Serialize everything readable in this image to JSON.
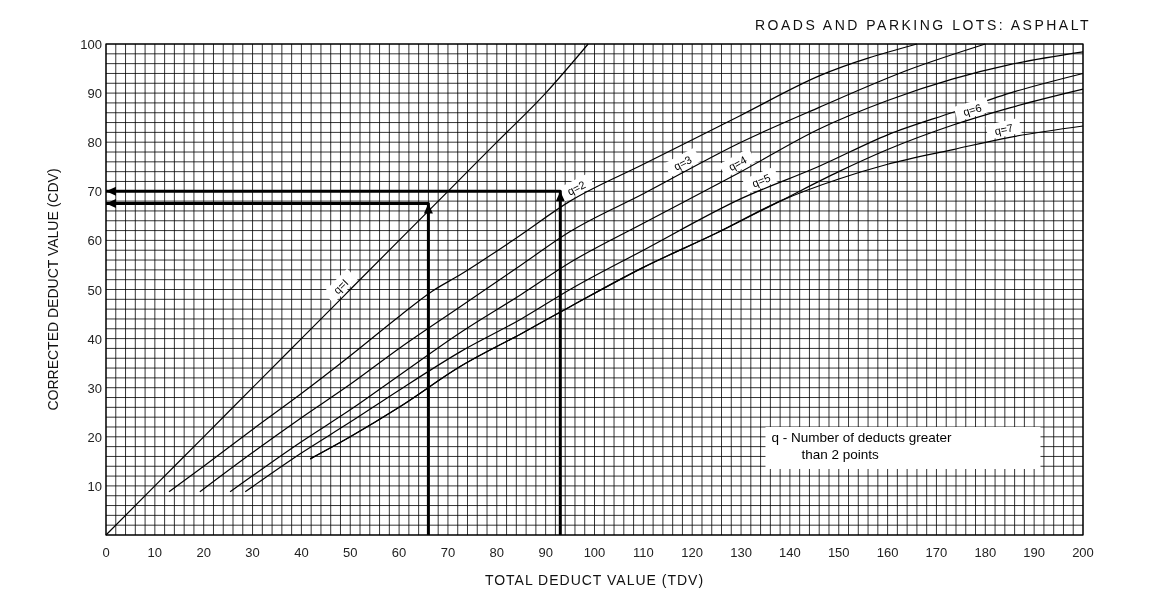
{
  "chart_data": {
    "type": "line",
    "title": "ROADS AND PARKING LOTS:  ASPHALT",
    "xlabel": "TOTAL DEDUCT VALUE (TDV)",
    "ylabel": "CORRECTED DEDUCT VALUE (CDV)",
    "annotations": [
      "q  - Number of deducts greater\nthan 2 points"
    ],
    "xlim": [
      0,
      200
    ],
    "ylim": [
      0,
      100
    ],
    "xticks": [
      0,
      10,
      20,
      30,
      40,
      50,
      60,
      70,
      80,
      90,
      100,
      110,
      120,
      130,
      140,
      150,
      160,
      170,
      180,
      190,
      200
    ],
    "yticks": [
      10,
      20,
      30,
      40,
      50,
      60,
      70,
      80,
      90,
      100
    ],
    "grid": true,
    "legend": false,
    "marker": "none",
    "line_style": "solid",
    "series": [
      {
        "name": "q=I",
        "color": "#000000",
        "x": [
          0,
          10,
          20,
          30,
          40,
          50,
          60,
          70,
          80,
          90,
          98.7
        ],
        "values": [
          0,
          10,
          20,
          30,
          40,
          50,
          60,
          70,
          80,
          90,
          100
        ]
      },
      {
        "name": "q=2",
        "color": "#000000",
        "x": [
          12.9,
          20,
          30,
          40,
          50,
          60,
          66.7,
          72.5,
          84,
          95,
          110,
          130,
          146,
          166
        ],
        "values": [
          8.8,
          14,
          21.5,
          28.8,
          36.5,
          44.5,
          49.6,
          53,
          60.5,
          68,
          75.5,
          85.5,
          93.5,
          100
        ]
      },
      {
        "name": "q=3",
        "color": "#000000",
        "x": [
          19.2,
          30,
          40,
          50,
          60,
          72.5,
          85,
          95,
          110,
          130,
          146,
          165,
          180
        ],
        "values": [
          8.8,
          16.8,
          23.9,
          30.7,
          38,
          46.5,
          55,
          61.8,
          69.5,
          80,
          87.1,
          95,
          100
        ]
      },
      {
        "name": "q=4",
        "color": "#000000",
        "x": [
          25.4,
          40,
          50,
          60,
          72.5,
          85,
          95,
          110,
          130,
          146,
          160,
          173.4,
          185,
          200
        ],
        "values": [
          8.8,
          19,
          25.5,
          32.5,
          41.2,
          49,
          55.5,
          63.5,
          74,
          82.7,
          88.5,
          92.9,
          95.8,
          98.4
        ]
      },
      {
        "name": "q=5",
        "color": "#000000",
        "x": [
          28.5,
          40,
          50,
          60,
          72.5,
          85,
          95,
          110,
          130,
          146,
          160,
          173.4,
          185,
          200
        ],
        "values": [
          8.8,
          16.7,
          23,
          29.5,
          37.3,
          44,
          50,
          58,
          68.5,
          75.1,
          81.5,
          86.1,
          90,
          94
        ]
      },
      {
        "name": "q=6",
        "color": "#000000",
        "x": [
          41.8,
          50,
          60,
          72.5,
          85,
          95,
          110,
          125,
          138,
          150,
          160,
          173.4,
          185,
          200
        ],
        "values": [
          15.5,
          20,
          26,
          34.3,
          41,
          46.5,
          54.5,
          61.5,
          68,
          74,
          78.5,
          83.5,
          87,
          90.8
        ]
      },
      {
        "name": "q=7",
        "color": "#000000",
        "x": [
          41.8,
          50,
          60,
          72.5,
          85,
          95,
          110,
          125,
          138,
          150,
          160,
          173.4,
          185,
          200
        ],
        "values": [
          15.5,
          20,
          26,
          34.3,
          41,
          46.5,
          54.5,
          61.5,
          68,
          72.5,
          75.5,
          78.5,
          81,
          83.3
        ]
      },
      {
        "color": "#000000",
        "x": [
          66,
          66,
          0
        ],
        "values": [
          0,
          67.5,
          67.5
        ]
      },
      {
        "color": "#000000",
        "x": [
          93,
          93,
          0
        ],
        "values": [
          0,
          70,
          70
        ]
      }
    ]
  }
}
